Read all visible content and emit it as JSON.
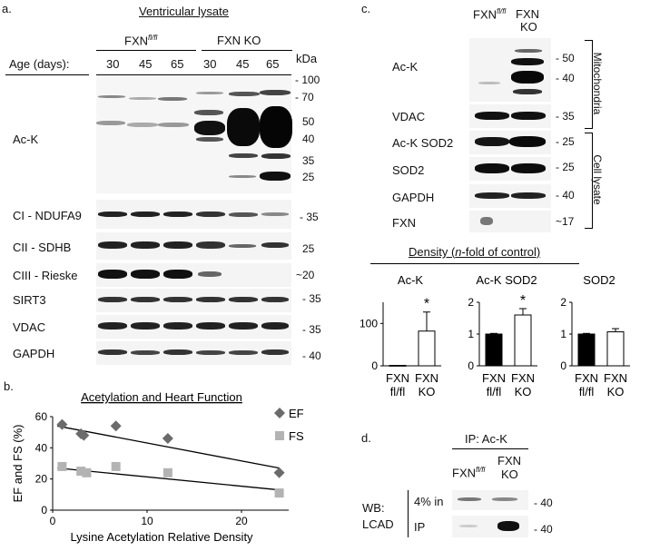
{
  "panel_a": {
    "letter": "a.",
    "title": "Ventricular lysate",
    "group_fxn_flfl": "FXN",
    "group_fxn_flfl_sup": "fl/fl",
    "group_fxn_ko": "FXN KO",
    "age_label": "Age (days):",
    "ages": [
      "30",
      "45",
      "65",
      "30",
      "45",
      "65"
    ],
    "kda_label": "kDa",
    "ack_label": "Ac-K",
    "ack_markers": [
      "- 100",
      "- 70",
      "50",
      "40",
      "35",
      "25"
    ],
    "rows": [
      {
        "label": "CI - NDUFA9",
        "marker": "- 35"
      },
      {
        "label": "CII - SDHB",
        "marker": "25"
      },
      {
        "label": "CIII - Rieske",
        "marker": "~20"
      },
      {
        "label": "SIRT3",
        "marker": "- 35"
      },
      {
        "label": "VDAC",
        "marker": "- 35"
      },
      {
        "label": "GAPDH",
        "marker": "- 40"
      }
    ]
  },
  "panel_b": {
    "letter": "b.",
    "chart_data": {
      "type": "scatter",
      "title": "Acetylation and Heart Function",
      "xlabel": "Lysine Acetylation Relative Density",
      "ylabel": "EF and FS (%)",
      "xlim": [
        0,
        25
      ],
      "ylim": [
        0,
        60
      ],
      "xticks": [
        "0",
        "10",
        "20"
      ],
      "yticks": [
        "0",
        "20",
        "40",
        "60"
      ],
      "legend_position": "top-right",
      "series": [
        {
          "name": "EF",
          "marker": "diamond",
          "color": "#6b6b6b",
          "x": [
            1.0,
            3.0,
            3.3,
            6.7,
            12.2,
            24.0
          ],
          "y": [
            55,
            49,
            48,
            54,
            46,
            24
          ],
          "trend": [
            [
              0.5,
              54
            ],
            [
              24,
              27
            ]
          ]
        },
        {
          "name": "FS",
          "marker": "square",
          "color": "#b3b3b3",
          "x": [
            1.0,
            3.0,
            3.6,
            6.7,
            12.2,
            24.0
          ],
          "y": [
            28,
            25,
            24,
            28,
            24,
            11
          ],
          "trend": [
            [
              0.5,
              27
            ],
            [
              24,
              13
            ]
          ]
        }
      ]
    }
  },
  "panel_c": {
    "letter": "c.",
    "col_fxn_flfl": "FXN",
    "col_fxn_flfl_sup": "fl/fl",
    "col_fxn_ko_line1": "FXN",
    "col_fxn_ko_line2": "KO",
    "rows": [
      {
        "label": "Ac-K",
        "markers": [
          "- 50",
          "- 40"
        ]
      },
      {
        "label": "VDAC",
        "markers": [
          "- 35"
        ]
      },
      {
        "label": "Ac-K SOD2",
        "markers": [
          "- 25"
        ]
      },
      {
        "label": "SOD2",
        "markers": [
          "- 25"
        ]
      },
      {
        "label": "GAPDH",
        "markers": [
          "- 40"
        ]
      },
      {
        "label": "FXN",
        "markers": [
          "~17"
        ]
      }
    ],
    "bracket_mito": "Mitochondria",
    "bracket_lysate": "Cell lysate",
    "density_title_pre": "Density (",
    "density_title_em": "n",
    "density_title_post": "-fold of control)",
    "chart_data": [
      {
        "type": "bar",
        "title": "Ac-K",
        "categories": [
          "FXN fl/fl",
          "FXN KO"
        ],
        "values": [
          1,
          82
        ],
        "errors": [
          0,
          45
        ],
        "ylim": [
          0,
          150
        ],
        "yticks": [
          "0",
          "100"
        ],
        "significance": [
          "",
          "*"
        ],
        "fills": [
          "#000000",
          "#ffffff"
        ]
      },
      {
        "type": "bar",
        "title": "Ac-K SOD2",
        "categories": [
          "FXN fl/fl",
          "FXN KO"
        ],
        "values": [
          1.0,
          1.6
        ],
        "errors": [
          0.02,
          0.2
        ],
        "ylim": [
          0,
          2
        ],
        "yticks": [
          "0",
          "1",
          "2"
        ],
        "significance": [
          "",
          "*"
        ],
        "fills": [
          "#000000",
          "#ffffff"
        ]
      },
      {
        "type": "bar",
        "title": "SOD2",
        "categories": [
          "FXN fl/fl",
          "FXN KO"
        ],
        "values": [
          1.0,
          1.07
        ],
        "errors": [
          0.02,
          0.1
        ],
        "ylim": [
          0,
          2
        ],
        "yticks": [
          "0",
          "1",
          "2"
        ],
        "significance": [
          "",
          ""
        ],
        "fills": [
          "#000000",
          "#ffffff"
        ]
      }
    ],
    "cat_line1": [
      "FXN",
      "FXN"
    ],
    "cat_line2": [
      "fl/fl",
      "KO"
    ]
  },
  "panel_d": {
    "letter": "d.",
    "ip_label": "IP: Ac-K",
    "col_fxn_flfl": "FXN",
    "col_fxn_flfl_sup": "fl/fl",
    "col_fxn_ko_line1": "FXN",
    "col_fxn_ko_line2": "KO",
    "wb_line1": "WB:",
    "wb_line2": "LCAD",
    "row1": "4% in",
    "row2": "IP",
    "marker1": "- 40",
    "marker2": "- 40"
  }
}
